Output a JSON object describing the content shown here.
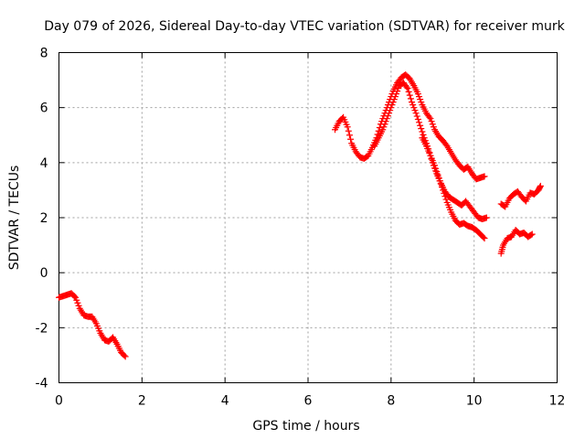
{
  "chart_data": {
    "type": "scatter",
    "title": "Day 079 of 2026, Sidereal Day-to-day VTEC variation (SDTVAR) for receiver murk",
    "xlabel": "GPS time / hours",
    "ylabel": "SDTVAR / TECUs",
    "xlim": [
      0,
      12
    ],
    "ylim": [
      -4,
      8
    ],
    "xticks": [
      0,
      2,
      4,
      6,
      8,
      10,
      12
    ],
    "yticks": [
      -4,
      -2,
      0,
      2,
      4,
      6,
      8
    ],
    "xtick_labels": [
      "0",
      "2",
      "4",
      "6",
      "8",
      "10",
      "12"
    ],
    "ytick_labels": [
      "-4",
      "-2",
      "0",
      "2",
      "4",
      "6",
      "8"
    ],
    "grid": true,
    "marker": "plus",
    "marker_color": "#ff0000",
    "series": [
      {
        "name": "segment-1",
        "x": [
          0.0,
          0.1,
          0.2,
          0.3,
          0.4,
          0.5,
          0.6,
          0.7,
          0.8,
          0.9,
          1.0,
          1.1,
          1.2,
          1.3,
          1.4,
          1.5,
          1.6
        ],
        "y": [
          -0.9,
          -0.85,
          -0.8,
          -0.75,
          -0.9,
          -1.3,
          -1.55,
          -1.6,
          -1.6,
          -1.85,
          -2.2,
          -2.45,
          -2.5,
          -2.35,
          -2.6,
          -2.9,
          -3.05
        ]
      },
      {
        "name": "segment-2",
        "x": [
          6.65,
          6.75,
          6.85,
          6.95,
          7.05,
          7.15,
          7.25,
          7.35,
          7.45,
          7.55,
          7.65,
          7.75,
          7.85,
          7.95,
          8.05,
          8.15,
          8.25,
          8.35,
          8.45,
          8.55,
          8.65,
          8.75,
          8.85,
          8.95,
          9.05,
          9.15,
          9.25,
          9.35,
          9.45,
          9.55,
          9.65,
          9.75,
          9.85,
          9.95,
          10.05,
          10.15,
          10.25
        ],
        "y": [
          5.2,
          5.5,
          5.65,
          5.3,
          4.7,
          4.4,
          4.2,
          4.15,
          4.25,
          4.55,
          4.9,
          5.4,
          5.8,
          6.2,
          6.6,
          6.9,
          7.1,
          7.2,
          7.05,
          6.8,
          6.5,
          6.1,
          5.8,
          5.6,
          5.2,
          4.95,
          4.8,
          4.6,
          4.35,
          4.1,
          3.9,
          3.75,
          3.85,
          3.6,
          3.4,
          3.45,
          3.5
        ]
      },
      {
        "name": "segment-3",
        "x": [
          7.6,
          7.7,
          7.8,
          7.9,
          8.0,
          8.1,
          8.2,
          8.3,
          8.4,
          8.5,
          8.6,
          8.7,
          8.8,
          8.9,
          9.0,
          9.1,
          9.2,
          9.3,
          9.4,
          9.5,
          9.6,
          9.7,
          9.8,
          9.9,
          10.0,
          10.1,
          10.2,
          10.3
        ],
        "y": [
          4.6,
          4.9,
          5.2,
          5.6,
          6.0,
          6.4,
          6.8,
          6.9,
          6.7,
          6.2,
          5.8,
          5.35,
          4.9,
          4.5,
          4.0,
          3.6,
          3.25,
          2.95,
          2.75,
          2.65,
          2.55,
          2.45,
          2.6,
          2.4,
          2.2,
          2.0,
          1.95,
          2.0
        ]
      },
      {
        "name": "segment-4",
        "x": [
          8.75,
          8.85,
          8.95,
          9.05,
          9.15,
          9.25,
          9.35,
          9.45,
          9.55,
          9.65,
          9.75,
          9.85,
          9.95,
          10.05,
          10.15,
          10.25
        ],
        "y": [
          4.9,
          4.6,
          4.25,
          3.9,
          3.45,
          3.0,
          2.55,
          2.2,
          1.9,
          1.75,
          1.8,
          1.7,
          1.65,
          1.55,
          1.4,
          1.25
        ]
      },
      {
        "name": "segment-5",
        "x": [
          10.65,
          10.75,
          10.85,
          10.95,
          11.05,
          11.15,
          11.25,
          11.35,
          11.45,
          11.55,
          11.6
        ],
        "y": [
          2.5,
          2.4,
          2.7,
          2.85,
          2.95,
          2.75,
          2.6,
          2.9,
          2.85,
          3.0,
          3.15
        ]
      },
      {
        "name": "segment-6",
        "x": [
          10.65,
          10.7,
          10.8,
          10.9,
          11.0,
          11.1,
          11.2,
          11.3,
          11.4
        ],
        "y": [
          0.7,
          1.0,
          1.25,
          1.3,
          1.55,
          1.4,
          1.45,
          1.3,
          1.4
        ]
      }
    ]
  }
}
